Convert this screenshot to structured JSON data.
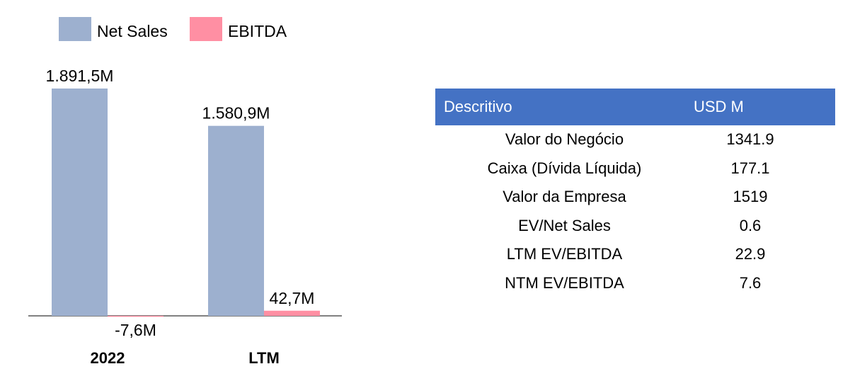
{
  "chart_data": {
    "type": "bar",
    "categories": [
      "2022",
      "LTM"
    ],
    "series": [
      {
        "name": "Net Sales",
        "values": [
          1891.5,
          1580.9
        ],
        "labels": [
          "1.891,5M",
          "1.580,9M"
        ],
        "color": "#9db0cf"
      },
      {
        "name": "EBITDA",
        "values": [
          -7.6,
          42.7
        ],
        "labels": [
          "-7,6M",
          "42,7M"
        ],
        "color": "#ff8fa3"
      }
    ],
    "legend": "top-left"
  },
  "table": {
    "headers": [
      "Descritivo",
      "USD M"
    ],
    "rows": [
      [
        "Valor do Negócio",
        "1341.9"
      ],
      [
        "Caixa (Dívida Líquida)",
        "177.1"
      ],
      [
        "Valor da Empresa",
        "1519"
      ],
      [
        "EV/Net Sales",
        "0.6"
      ],
      [
        "LTM EV/EBITDA",
        "22.9"
      ],
      [
        "NTM EV/EBITDA",
        "7.6"
      ]
    ],
    "header_color": "#4472c4"
  }
}
